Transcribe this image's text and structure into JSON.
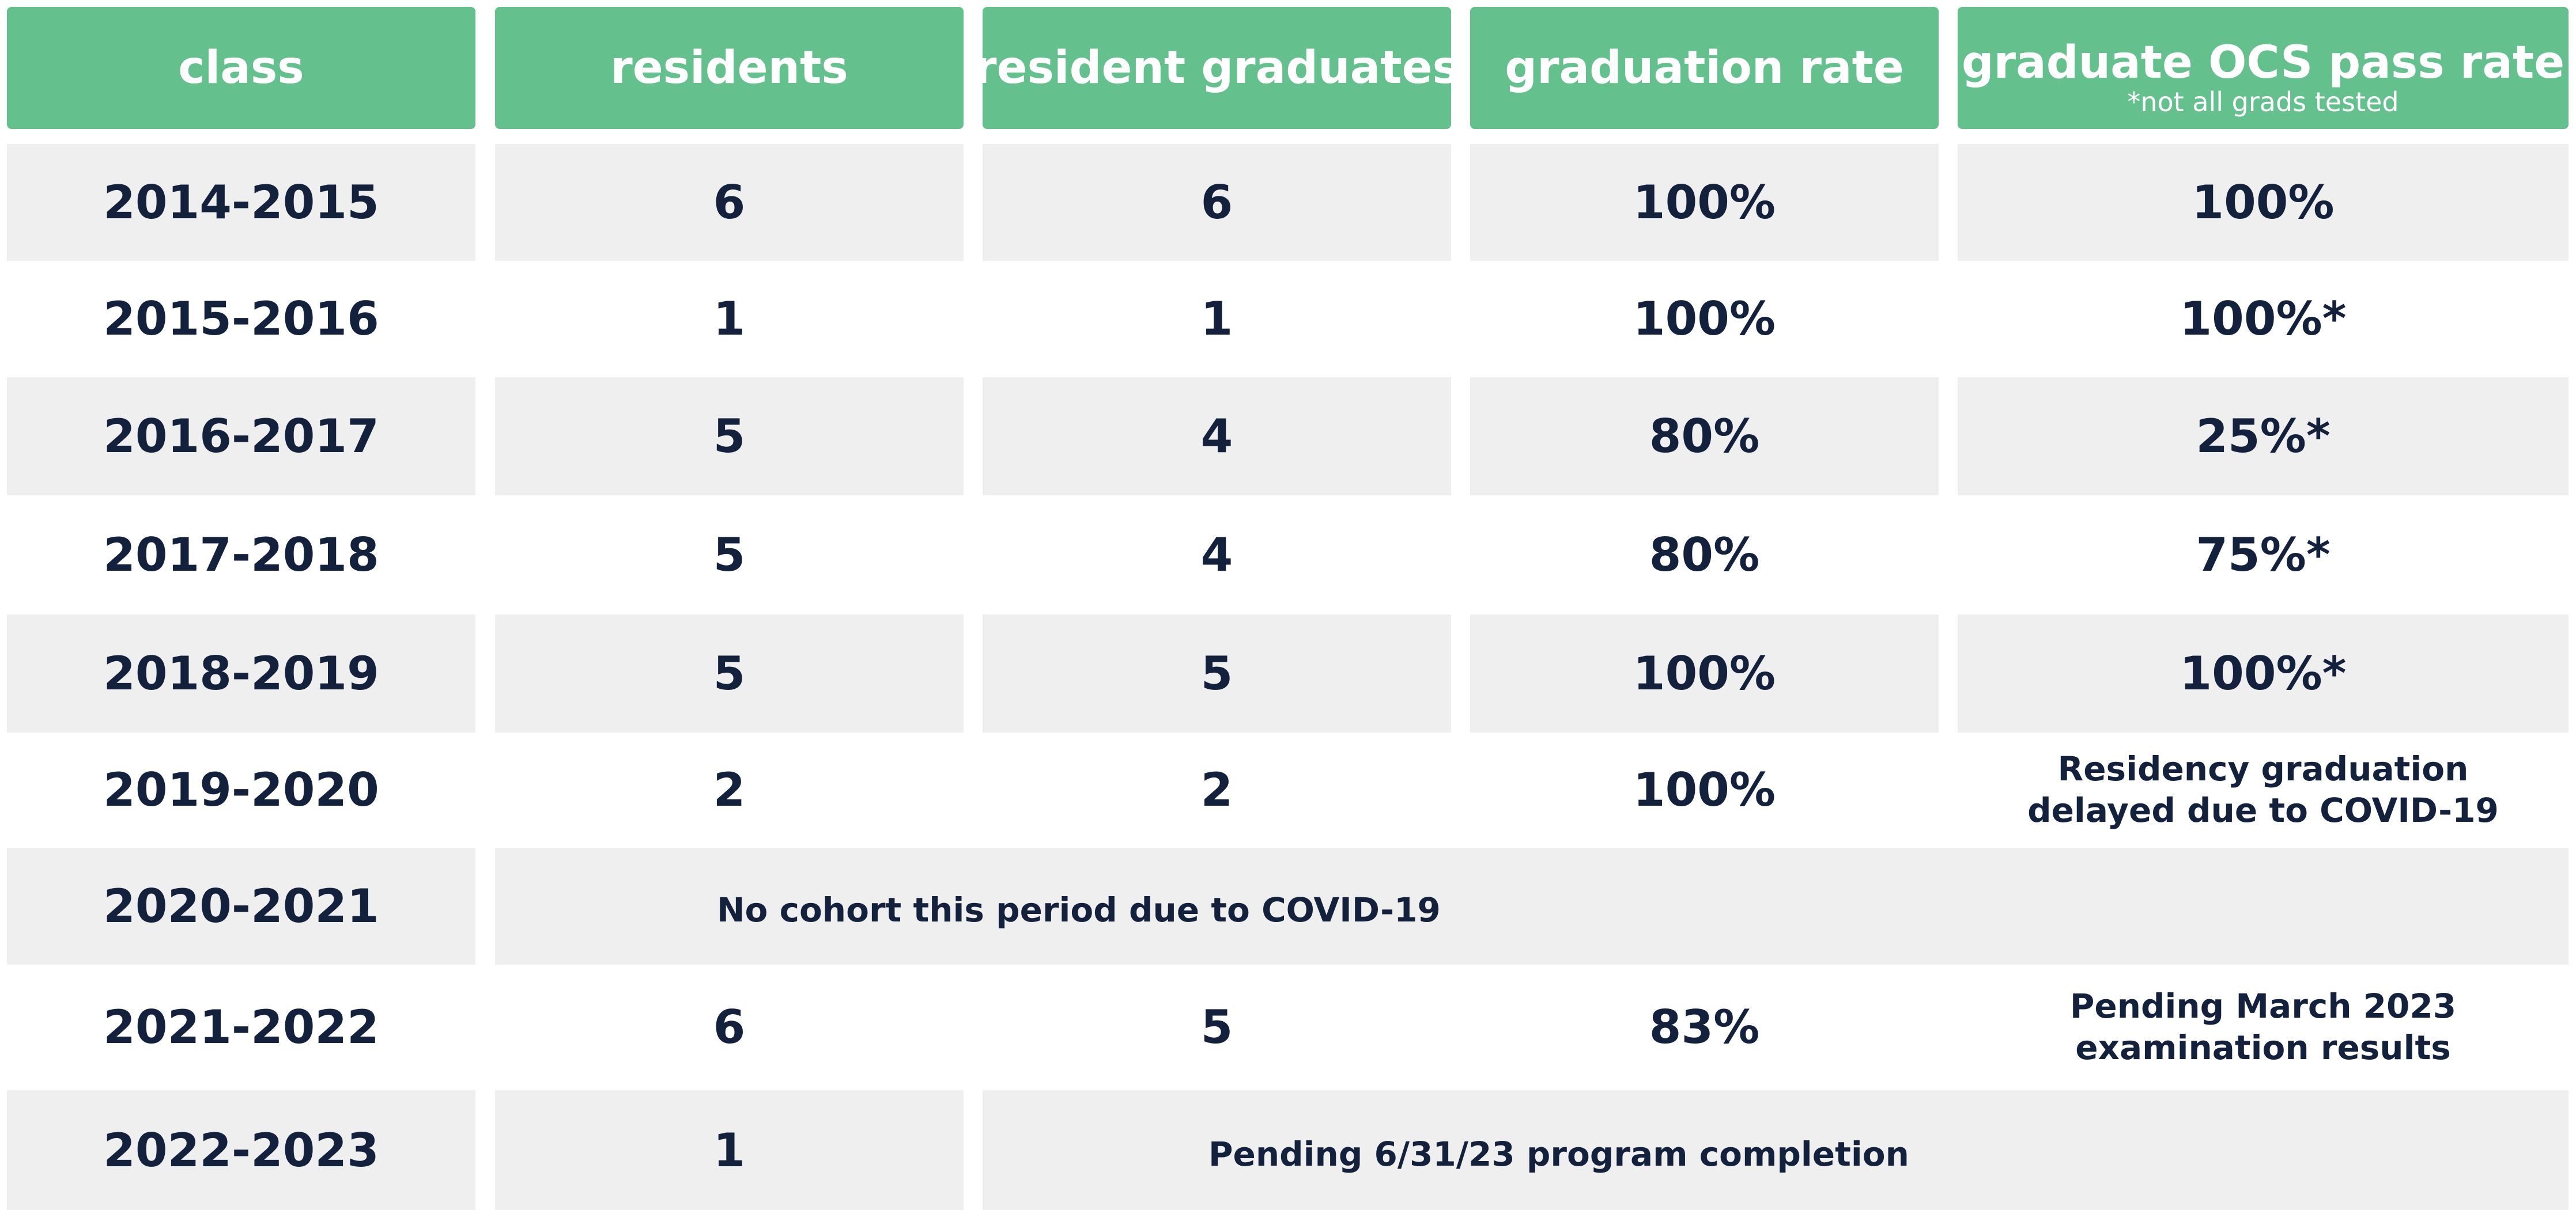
{
  "headers": {
    "class": "class",
    "residents": "residents",
    "graduates": "resident graduates",
    "grad_rate": "graduation rate",
    "ocs": "graduate OCS pass rate",
    "ocs_note": "*not all grads tested"
  },
  "rows": [
    {
      "class": "2014-2015",
      "residents": "6",
      "graduates": "6",
      "grad_rate": "100%",
      "ocs": "100%"
    },
    {
      "class": "2015-2016",
      "residents": "1",
      "graduates": "1",
      "grad_rate": "100%",
      "ocs": "100%*"
    },
    {
      "class": "2016-2017",
      "residents": "5",
      "graduates": "4",
      "grad_rate": "80%",
      "ocs": "25%*"
    },
    {
      "class": "2017-2018",
      "residents": "5",
      "graduates": "4",
      "grad_rate": "80%",
      "ocs": "75%*"
    },
    {
      "class": "2018-2019",
      "residents": "5",
      "graduates": "5",
      "grad_rate": "100%",
      "ocs": "100%*"
    },
    {
      "class": "2019-2020",
      "residents": "2",
      "graduates": "2",
      "grad_rate": "100%",
      "ocs_line1": "Residency graduation",
      "ocs_line2": "delayed due to COVID-19"
    },
    {
      "class": "2020-2021",
      "note": "No cohort this period due to COVID-19"
    },
    {
      "class": "2021-2022",
      "residents": "6",
      "graduates": "5",
      "grad_rate": "83%",
      "ocs_line1": "Pending March 2023",
      "ocs_line2": "examination results"
    },
    {
      "class": "2022-2023",
      "residents": "1",
      "note": "Pending 6/31/23 program completion"
    }
  ]
}
